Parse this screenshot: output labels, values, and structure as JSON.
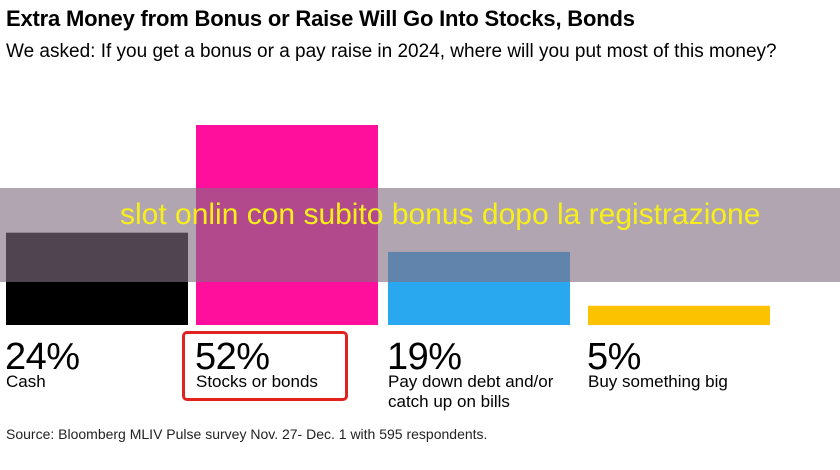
{
  "chart_data": {
    "type": "bar",
    "title": "Extra Money from Bonus or Raise Will Go Into Stocks, Bonds",
    "subtitle": "We asked: If you get a bonus or a pay raise in 2024, where will you put most of this money?",
    "categories": [
      "Cash",
      "Stocks or bonds",
      "Pay down debt and/or catch up on bills",
      "Buy something big"
    ],
    "values": [
      24,
      52,
      19,
      5
    ],
    "value_labels": [
      "24%",
      "52%",
      "19%",
      "5%"
    ],
    "colors": [
      "#000000",
      "#ff0f9c",
      "#29a8f0",
      "#fcc200"
    ],
    "ylim": [
      0,
      52
    ],
    "highlighted_category": "Stocks or bonds",
    "highlight_color": "#e0231f",
    "source": "Source: Bloomberg MLIV Pulse survey Nov. 27- Dec. 1 with 595 respondents."
  },
  "overlay": {
    "text": "slot onlin con subito bonus dopo la registrazione",
    "text_color": "#f6ef1a"
  }
}
